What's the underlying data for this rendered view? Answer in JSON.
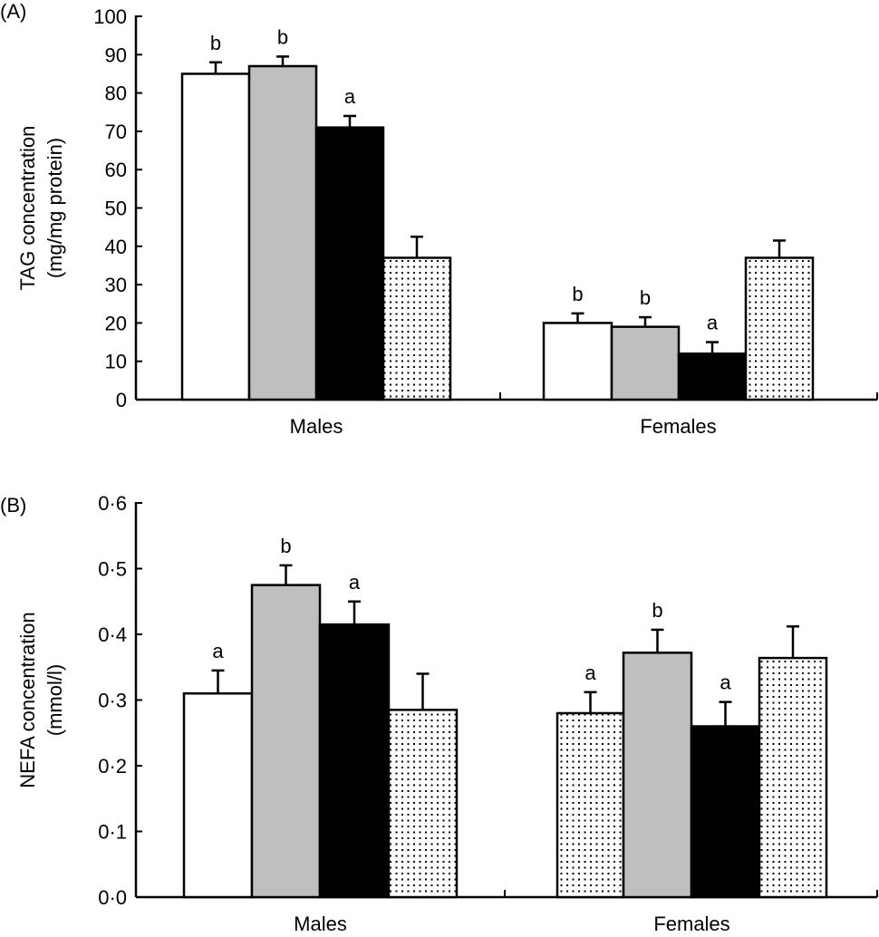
{
  "colors": {
    "fills": [
      "#ffffff",
      "#bfbfbf",
      "#000000",
      "dotted"
    ]
  },
  "chart_data": [
    {
      "type": "bar",
      "panel_label": "(A)",
      "ylabel": [
        "TAG concentration",
        "(mg/mg protein)"
      ],
      "ylim": [
        0,
        100
      ],
      "yticks": [
        "0",
        "10",
        "20",
        "30",
        "40",
        "50",
        "60",
        "70",
        "80",
        "90",
        "100"
      ],
      "categories": [
        "Males",
        "Females"
      ],
      "bars": [
        [
          {
            "value": 85,
            "error": 3,
            "fill": "white",
            "letter": "b"
          },
          {
            "value": 87,
            "error": 2.5,
            "fill": "grey",
            "letter": "b"
          },
          {
            "value": 71,
            "error": 3,
            "fill": "black",
            "letter": "a"
          },
          {
            "value": 37,
            "error": 5.5,
            "fill": "dotted",
            "letter": ""
          }
        ],
        [
          {
            "value": 20,
            "error": 2.5,
            "fill": "white",
            "letter": "b"
          },
          {
            "value": 19,
            "error": 2.5,
            "fill": "grey",
            "letter": "b"
          },
          {
            "value": 12,
            "error": 3,
            "fill": "black",
            "letter": "a"
          },
          {
            "value": 37,
            "error": 4.5,
            "fill": "dotted",
            "letter": ""
          }
        ]
      ]
    },
    {
      "type": "bar",
      "panel_label": "(B)",
      "ylabel": [
        "NEFA concentration",
        "(mmol/l)"
      ],
      "ylim": [
        0,
        0.6
      ],
      "yticks": [
        "0·0",
        "0·1",
        "0·2",
        "0·3",
        "0·4",
        "0·5",
        "0·6"
      ],
      "categories": [
        "Males",
        "Females"
      ],
      "bars": [
        [
          {
            "value": 0.31,
            "error": 0.035,
            "fill": "white",
            "letter": "a"
          },
          {
            "value": 0.475,
            "error": 0.03,
            "fill": "grey",
            "letter": "b"
          },
          {
            "value": 0.415,
            "error": 0.035,
            "fill": "black",
            "letter": "a"
          },
          {
            "value": 0.285,
            "error": 0.055,
            "fill": "dotted",
            "letter": ""
          }
        ],
        [
          {
            "value": 0.28,
            "error": 0.032,
            "fill": "dotted",
            "letter": "a"
          },
          {
            "value": 0.372,
            "error": 0.035,
            "fill": "grey",
            "letter": "b"
          },
          {
            "value": 0.26,
            "error": 0.037,
            "fill": "black",
            "letter": "a"
          },
          {
            "value": 0.364,
            "error": 0.048,
            "fill": "dotted",
            "letter": ""
          }
        ]
      ]
    }
  ]
}
